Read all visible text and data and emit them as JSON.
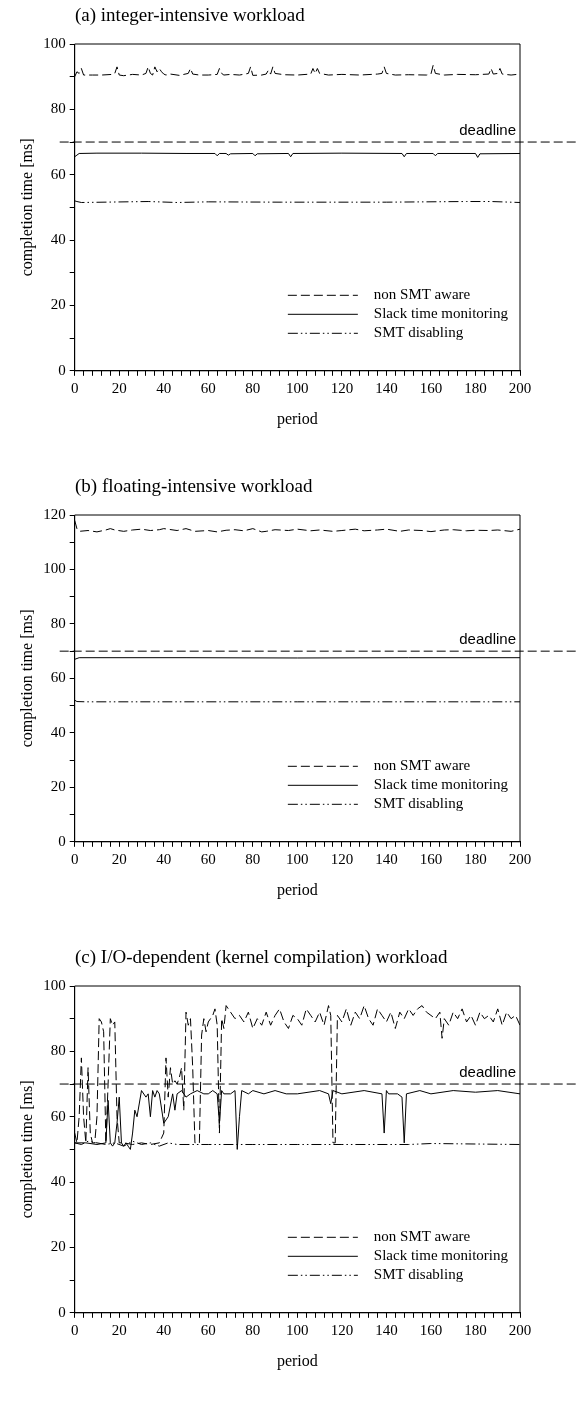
{
  "chart_data": [
    {
      "type": "line",
      "title": "(a) integer-intensive workload",
      "xlabel": "period",
      "ylabel": "completion time [ms]",
      "xlim": [
        0,
        200
      ],
      "ylim": [
        0,
        100
      ],
      "xticks": [
        0,
        {
          "value": 4,
          "label": null
        },
        {
          "value": 8,
          "label": null
        },
        {
          "value": 12,
          "label": null
        },
        {
          "value": 16,
          "label": null
        },
        20,
        {
          "value": 24,
          "label": null
        },
        {
          "value": 28,
          "label": null
        },
        {
          "value": 32,
          "label": null
        },
        {
          "value": 36,
          "label": null
        },
        40,
        {
          "value": 44,
          "label": null
        },
        {
          "value": 48,
          "label": null
        },
        {
          "value": 52,
          "label": null
        },
        {
          "value": 56,
          "label": null
        },
        60,
        {
          "value": 64,
          "label": null
        },
        {
          "value": 68,
          "label": null
        },
        {
          "value": 72,
          "label": null
        },
        {
          "value": 76,
          "label": null
        },
        80,
        {
          "value": 84,
          "label": null
        },
        {
          "value": 88,
          "label": null
        },
        {
          "value": 92,
          "label": null
        },
        {
          "value": 96,
          "label": null
        },
        100,
        {
          "value": 104,
          "label": null
        },
        {
          "value": 108,
          "label": null
        },
        {
          "value": 112,
          "label": null
        },
        {
          "value": 116,
          "label": null
        },
        120,
        {
          "value": 124,
          "label": null
        },
        {
          "value": 128,
          "label": null
        },
        {
          "value": 132,
          "label": null
        },
        {
          "value": 136,
          "label": null
        },
        140,
        {
          "value": 144,
          "label": null
        },
        {
          "value": 148,
          "label": null
        },
        {
          "value": 152,
          "label": null
        },
        {
          "value": 156,
          "label": null
        },
        160,
        {
          "value": 164,
          "label": null
        },
        {
          "value": 168,
          "label": null
        },
        {
          "value": 172,
          "label": null
        },
        {
          "value": 176,
          "label": null
        },
        180,
        {
          "value": 184,
          "label": null
        },
        {
          "value": 188,
          "label": null
        },
        {
          "value": 192,
          "label": null
        },
        {
          "value": 196,
          "label": null
        },
        200
      ],
      "yticks": [
        0,
        {
          "value": 10,
          "label": null
        },
        20,
        {
          "value": 30,
          "label": null
        },
        40,
        {
          "value": 50,
          "label": null
        },
        60,
        {
          "value": 70,
          "label": null
        },
        80,
        {
          "value": 90,
          "label": null
        },
        100
      ],
      "grid": false,
      "legend": "bottom right",
      "marker": "none",
      "ref_lines": [
        {
          "axis": "y",
          "value": 70,
          "label": "deadline",
          "line_style": "dashed"
        }
      ],
      "series": [
        {
          "name": "non SMT aware",
          "color": "#000000",
          "line_style": "dashed",
          "x": [
            0,
            1,
            2,
            3,
            4,
            5,
            8,
            12,
            17,
            18,
            19,
            20,
            22,
            26,
            30,
            32,
            33,
            34,
            35,
            36,
            37,
            38,
            39,
            40,
            41,
            43,
            47,
            51,
            52,
            53,
            56,
            60,
            64,
            65,
            66,
            67,
            70,
            74,
            78,
            79,
            80,
            84,
            86,
            87,
            88,
            89,
            90,
            94,
            100,
            106,
            107,
            108,
            109,
            110,
            114,
            120,
            128,
            136,
            138,
            139,
            140,
            144,
            150,
            158,
            160,
            161,
            162,
            166,
            172,
            180,
            186,
            187,
            188,
            190,
            191,
            192,
            196,
            200
          ],
          "values": [
            90,
            91.5,
            91,
            92.5,
            90.5,
            90.5,
            90.5,
            90.5,
            90.7,
            91,
            93,
            90.5,
            90.3,
            90.7,
            90.5,
            91,
            93,
            91,
            90.5,
            93,
            91.5,
            92.5,
            91.5,
            90.8,
            90.5,
            90.8,
            90.4,
            91,
            92.5,
            90.8,
            90.5,
            90.5,
            90.7,
            92.5,
            91,
            90.5,
            90.7,
            90.5,
            91,
            93,
            90.4,
            90.5,
            90.8,
            92,
            90.8,
            93,
            91,
            90.6,
            90.5,
            90.8,
            92.5,
            91,
            92.5,
            91,
            90.5,
            90.7,
            90.5,
            90.8,
            91,
            93,
            91,
            90.5,
            90.6,
            90.5,
            90.8,
            93.5,
            91,
            90.5,
            90.7,
            90.6,
            90.8,
            92.5,
            90.8,
            91,
            92.5,
            90.8,
            90.5,
            90.8
          ]
        },
        {
          "name": "Slack time monitoring",
          "color": "#000000",
          "line_style": "solid",
          "x": [
            0,
            1,
            2,
            10,
            30,
            50,
            63,
            64,
            65,
            68,
            69,
            70,
            80,
            81,
            82,
            96,
            97,
            98,
            120,
            147,
            148,
            149,
            161,
            162,
            163,
            180,
            181,
            182,
            200
          ],
          "values": [
            65.5,
            66,
            66.5,
            66.6,
            66.6,
            66.5,
            66.5,
            65.8,
            66.5,
            66.5,
            66,
            66.4,
            66.5,
            65.8,
            66.4,
            66.5,
            65.5,
            66.5,
            66.6,
            66.5,
            65.5,
            66.5,
            66.5,
            65.8,
            66.5,
            66.5,
            65.3,
            66.4,
            66.5
          ]
        },
        {
          "name": "SMT disabling",
          "color": "#000000",
          "line_style": "dotted",
          "x": [
            0,
            1,
            3,
            33,
            46,
            60,
            93,
            140,
            176,
            187,
            200
          ],
          "values": [
            52,
            51.8,
            51.5,
            51.8,
            51.5,
            51.7,
            51.6,
            51.6,
            51.8,
            51.8,
            51.5
          ]
        }
      ]
    },
    {
      "type": "line",
      "title": "(b) floating-intensive workload",
      "xlabel": "period",
      "ylabel": "completion time [ms]",
      "xlim": [
        0,
        200
      ],
      "ylim": [
        0,
        120
      ],
      "xticks": [
        0,
        {
          "value": 4,
          "label": null
        },
        {
          "value": 8,
          "label": null
        },
        {
          "value": 12,
          "label": null
        },
        {
          "value": 16,
          "label": null
        },
        20,
        {
          "value": 24,
          "label": null
        },
        {
          "value": 28,
          "label": null
        },
        {
          "value": 32,
          "label": null
        },
        {
          "value": 36,
          "label": null
        },
        40,
        {
          "value": 44,
          "label": null
        },
        {
          "value": 48,
          "label": null
        },
        {
          "value": 52,
          "label": null
        },
        {
          "value": 56,
          "label": null
        },
        60,
        {
          "value": 64,
          "label": null
        },
        {
          "value": 68,
          "label": null
        },
        {
          "value": 72,
          "label": null
        },
        {
          "value": 76,
          "label": null
        },
        80,
        {
          "value": 84,
          "label": null
        },
        {
          "value": 88,
          "label": null
        },
        {
          "value": 92,
          "label": null
        },
        {
          "value": 96,
          "label": null
        },
        100,
        {
          "value": 104,
          "label": null
        },
        {
          "value": 108,
          "label": null
        },
        {
          "value": 112,
          "label": null
        },
        {
          "value": 116,
          "label": null
        },
        120,
        {
          "value": 124,
          "label": null
        },
        {
          "value": 128,
          "label": null
        },
        {
          "value": 132,
          "label": null
        },
        {
          "value": 136,
          "label": null
        },
        140,
        {
          "value": 144,
          "label": null
        },
        {
          "value": 148,
          "label": null
        },
        {
          "value": 152,
          "label": null
        },
        {
          "value": 156,
          "label": null
        },
        160,
        {
          "value": 164,
          "label": null
        },
        {
          "value": 168,
          "label": null
        },
        {
          "value": 172,
          "label": null
        },
        {
          "value": 176,
          "label": null
        },
        180,
        {
          "value": 184,
          "label": null
        },
        {
          "value": 188,
          "label": null
        },
        {
          "value": 192,
          "label": null
        },
        {
          "value": 196,
          "label": null
        },
        200
      ],
      "yticks": [
        0,
        {
          "value": 10,
          "label": null
        },
        20,
        {
          "value": 30,
          "label": null
        },
        40,
        {
          "value": 50,
          "label": null
        },
        60,
        {
          "value": 70,
          "label": null
        },
        80,
        {
          "value": 90,
          "label": null
        },
        100,
        {
          "value": 110,
          "label": null
        },
        120
      ],
      "grid": false,
      "legend": "bottom right",
      "marker": "none",
      "ref_lines": [
        {
          "axis": "y",
          "value": 70,
          "label": "deadline",
          "line_style": "dashed"
        }
      ],
      "series": [
        {
          "name": "non SMT aware",
          "color": "#000000",
          "line_style": "dashed",
          "x": [
            0,
            1,
            2,
            6,
            10,
            14,
            16,
            18,
            22,
            26,
            30,
            34,
            38,
            40,
            46,
            50,
            54,
            60,
            64,
            68,
            72,
            76,
            80,
            84,
            86,
            90,
            96,
            100,
            106,
            110,
            116,
            120,
            126,
            130,
            136,
            140,
            146,
            150,
            156,
            160,
            166,
            170,
            176,
            180,
            186,
            190,
            196,
            200
          ],
          "values": [
            118,
            115,
            114,
            114.3,
            113.8,
            114.5,
            115,
            114.5,
            114,
            114.5,
            114.8,
            114.3,
            114.6,
            115,
            114.3,
            115,
            114,
            114.3,
            113.8,
            114.4,
            114.6,
            114.2,
            115,
            113.8,
            114,
            114.6,
            114.3,
            114.8,
            114.2,
            114.5,
            114,
            114.3,
            114.8,
            114.2,
            114.5,
            114.8,
            114,
            114.5,
            114.3,
            113.9,
            114.5,
            114.6,
            114.2,
            114.4,
            114.3,
            114.5,
            114,
            114.8
          ]
        },
        {
          "name": "Slack time monitoring",
          "color": "#000000",
          "line_style": "solid",
          "x": [
            0,
            2,
            50,
            100,
            150,
            200
          ],
          "values": [
            67,
            67.6,
            67.6,
            67.5,
            67.6,
            67.6
          ]
        },
        {
          "name": "SMT disabling",
          "color": "#000000",
          "line_style": "dotted",
          "x": [
            0,
            1,
            5,
            100,
            200
          ],
          "values": [
            52,
            51.5,
            51.4,
            51.4,
            51.4
          ]
        }
      ]
    },
    {
      "type": "line",
      "title": "(c) I/O-dependent (kernel compilation) workload",
      "xlabel": "period",
      "ylabel": "completion time [ms]",
      "xlim": [
        0,
        200
      ],
      "ylim": [
        0,
        100
      ],
      "xticks": [
        0,
        {
          "value": 4,
          "label": null
        },
        {
          "value": 8,
          "label": null
        },
        {
          "value": 12,
          "label": null
        },
        {
          "value": 16,
          "label": null
        },
        20,
        {
          "value": 24,
          "label": null
        },
        {
          "value": 28,
          "label": null
        },
        {
          "value": 32,
          "label": null
        },
        {
          "value": 36,
          "label": null
        },
        40,
        {
          "value": 44,
          "label": null
        },
        {
          "value": 48,
          "label": null
        },
        {
          "value": 52,
          "label": null
        },
        {
          "value": 56,
          "label": null
        },
        60,
        {
          "value": 64,
          "label": null
        },
        {
          "value": 68,
          "label": null
        },
        {
          "value": 72,
          "label": null
        },
        {
          "value": 76,
          "label": null
        },
        80,
        {
          "value": 84,
          "label": null
        },
        {
          "value": 88,
          "label": null
        },
        {
          "value": 92,
          "label": null
        },
        {
          "value": 96,
          "label": null
        },
        100,
        {
          "value": 104,
          "label": null
        },
        {
          "value": 108,
          "label": null
        },
        {
          "value": 112,
          "label": null
        },
        {
          "value": 116,
          "label": null
        },
        120,
        {
          "value": 124,
          "label": null
        },
        {
          "value": 128,
          "label": null
        },
        {
          "value": 132,
          "label": null
        },
        {
          "value": 136,
          "label": null
        },
        140,
        {
          "value": 144,
          "label": null
        },
        {
          "value": 148,
          "label": null
        },
        {
          "value": 152,
          "label": null
        },
        {
          "value": 156,
          "label": null
        },
        160,
        {
          "value": 164,
          "label": null
        },
        {
          "value": 168,
          "label": null
        },
        {
          "value": 172,
          "label": null
        },
        {
          "value": 176,
          "label": null
        },
        180,
        {
          "value": 184,
          "label": null
        },
        {
          "value": 188,
          "label": null
        },
        {
          "value": 192,
          "label": null
        },
        {
          "value": 196,
          "label": null
        },
        200
      ],
      "yticks": [
        0,
        {
          "value": 10,
          "label": null
        },
        20,
        {
          "value": 30,
          "label": null
        },
        40,
        {
          "value": 50,
          "label": null
        },
        60,
        {
          "value": 70,
          "label": null
        },
        80,
        {
          "value": 90,
          "label": null
        },
        100
      ],
      "grid": false,
      "legend": "bottom right",
      "marker": "none",
      "ref_lines": [
        {
          "axis": "y",
          "value": 70,
          "label": "deadline",
          "line_style": "dashed"
        }
      ],
      "series": [
        {
          "name": "non SMT aware",
          "color": "#000000",
          "line_style": "dashed",
          "x": [
            0,
            1,
            2,
            3,
            4,
            5,
            6,
            7,
            8,
            9,
            10,
            11,
            12,
            13,
            14,
            15,
            16,
            17,
            18,
            19,
            20,
            22,
            26,
            30,
            34,
            38,
            40,
            41,
            42,
            43,
            44,
            45,
            46,
            47,
            48,
            49,
            50,
            51,
            52,
            53,
            54,
            55,
            56,
            57,
            58,
            59,
            60,
            61,
            62,
            63,
            64,
            65,
            66,
            67,
            68,
            70,
            72,
            74,
            76,
            78,
            80,
            82,
            84,
            86,
            88,
            90,
            92,
            94,
            96,
            98,
            100,
            102,
            104,
            106,
            108,
            110,
            112,
            114,
            115,
            116,
            117,
            118,
            120,
            122,
            124,
            126,
            128,
            130,
            132,
            134,
            136,
            138,
            140,
            142,
            144,
            146,
            148,
            150,
            152,
            154,
            156,
            158,
            160,
            162,
            164,
            165,
            166,
            168,
            170,
            172,
            174,
            176,
            178,
            180,
            182,
            184,
            186,
            188,
            190,
            192,
            194,
            196,
            198,
            200
          ],
          "values": [
            55,
            52,
            60,
            78,
            60,
            52,
            75,
            55,
            52,
            52,
            60,
            90,
            89,
            86,
            52,
            70,
            90,
            88,
            89,
            60,
            52,
            52,
            51.5,
            52,
            51.5,
            52,
            55,
            78,
            66,
            75,
            70,
            71,
            70,
            72,
            75,
            62,
            92,
            88,
            90,
            75,
            52,
            52,
            52,
            85,
            90,
            86,
            89,
            90,
            91,
            93,
            88,
            55,
            90,
            87,
            94,
            92,
            90,
            91,
            89,
            92,
            87,
            90,
            88,
            92,
            88,
            91,
            93,
            89,
            87,
            91,
            90,
            88,
            93,
            91,
            89,
            92,
            88,
            94,
            91,
            52,
            52,
            91,
            89,
            93,
            88,
            92,
            90,
            94,
            90,
            88,
            93,
            91,
            89,
            92,
            87,
            92,
            90,
            93,
            91,
            93,
            94,
            92,
            91,
            90,
            92,
            84,
            90,
            88,
            92,
            90,
            93,
            89,
            91,
            88,
            92,
            90,
            91,
            89,
            93,
            88,
            92,
            90,
            91,
            88
          ]
        },
        {
          "name": "Slack time monitoring",
          "color": "#000000",
          "line_style": "solid",
          "x": [
            0,
            5,
            10,
            14,
            15,
            16,
            17,
            18,
            19,
            20,
            21,
            22,
            23,
            24,
            25,
            26,
            27,
            28,
            30,
            32,
            33,
            34,
            35,
            36,
            37,
            38,
            40,
            42,
            44,
            45,
            46,
            48,
            50,
            52,
            55,
            58,
            60,
            62,
            64,
            65,
            66,
            67,
            70,
            72,
            73,
            74,
            75,
            78,
            80,
            85,
            90,
            95,
            100,
            110,
            114,
            115,
            116,
            120,
            130,
            138,
            139,
            140,
            141,
            145,
            147,
            148,
            149,
            155,
            160,
            170,
            180,
            190,
            200
          ],
          "values": [
            52,
            52,
            51.5,
            52,
            65,
            52,
            51,
            52,
            58,
            66,
            52,
            51,
            52,
            51,
            50,
            55,
            62,
            60,
            68,
            66,
            67,
            60,
            68,
            66,
            68,
            67,
            58,
            60,
            67,
            62,
            67,
            68,
            66,
            67,
            68,
            67,
            67,
            68,
            67,
            58,
            68,
            67,
            67,
            68,
            50,
            60,
            68,
            67,
            68,
            67,
            68,
            67,
            67,
            68,
            67,
            64,
            68,
            67,
            68,
            67,
            55,
            68,
            67,
            67,
            66,
            52,
            67,
            68,
            67,
            68,
            67.5,
            68,
            67
          ]
        },
        {
          "name": "SMT disabling",
          "color": "#000000",
          "line_style": "dotted",
          "x": [
            0,
            3,
            6,
            10,
            14,
            18,
            22,
            26,
            30,
            34,
            38,
            42,
            46,
            50,
            60,
            80,
            100,
            120,
            150,
            160,
            200
          ],
          "values": [
            52,
            51.5,
            52.5,
            52,
            51.5,
            52,
            51,
            52.5,
            51.5,
            52,
            51,
            52,
            51.5,
            51.5,
            51.5,
            51.5,
            51.5,
            51.5,
            51.5,
            51.8,
            51.5
          ]
        }
      ]
    }
  ]
}
